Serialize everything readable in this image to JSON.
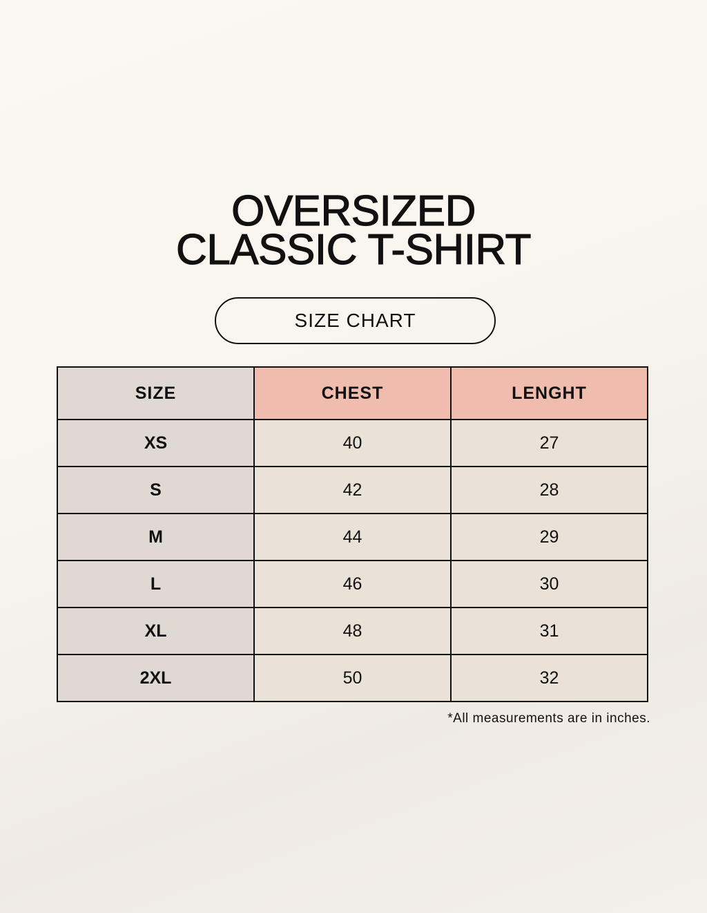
{
  "title_line1": "OVERSIZED",
  "title_line2": "CLASSIC T-SHIRT",
  "badge": "SIZE CHART",
  "table": {
    "headers": [
      "SIZE",
      "CHEST",
      "LENGHT"
    ],
    "rows": [
      [
        "XS",
        "40",
        "27"
      ],
      [
        "S",
        "42",
        "28"
      ],
      [
        "M",
        "44",
        "29"
      ],
      [
        "L",
        "46",
        "30"
      ],
      [
        "XL",
        "48",
        "31"
      ],
      [
        "2XL",
        "50",
        "32"
      ]
    ]
  },
  "footnote": "*All measurements are in inches.",
  "colors": {
    "header_accent": "#efbcae",
    "size_column": "#e0d8d3",
    "body_cells": "#ebe2d7"
  }
}
